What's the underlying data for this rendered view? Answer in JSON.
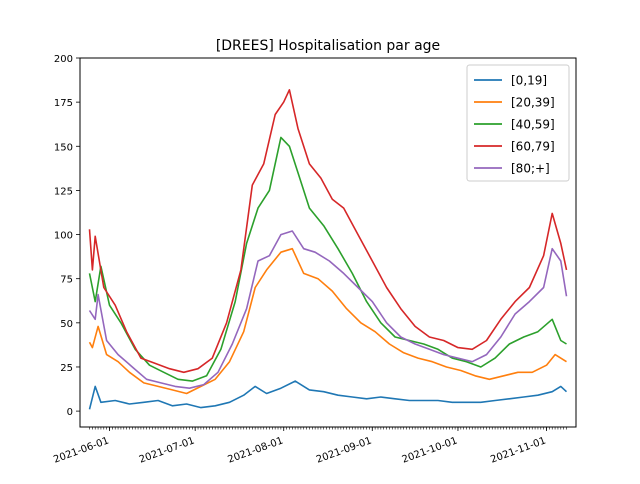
{
  "chart_data": {
    "type": "line",
    "title": "[DREES] Hospitalisation par age",
    "xlabel": "",
    "ylabel": "",
    "x_start": "2021-05-25",
    "x_end": "2021-11-08",
    "x_tick_labels": [
      "2021-06-01",
      "2021-07-01",
      "2021-08-01",
      "2021-09-01",
      "2021-10-01",
      "2021-11-01"
    ],
    "y_ticks": [
      0,
      25,
      50,
      75,
      100,
      125,
      150,
      175,
      200
    ],
    "ylim": [
      -9,
      200
    ],
    "grid": false,
    "legend_position": "top-right",
    "series": [
      {
        "name": "[0,19]",
        "color": "#1f77b4",
        "points": [
          [
            "2021-05-25",
            1
          ],
          [
            "2021-05-27",
            14
          ],
          [
            "2021-05-29",
            5
          ],
          [
            "2021-06-03",
            6
          ],
          [
            "2021-06-08",
            4
          ],
          [
            "2021-06-13",
            5
          ],
          [
            "2021-06-18",
            6
          ],
          [
            "2021-06-23",
            3
          ],
          [
            "2021-06-28",
            4
          ],
          [
            "2021-07-03",
            2
          ],
          [
            "2021-07-08",
            3
          ],
          [
            "2021-07-13",
            5
          ],
          [
            "2021-07-18",
            9
          ],
          [
            "2021-07-22",
            14
          ],
          [
            "2021-07-26",
            10
          ],
          [
            "2021-07-31",
            13
          ],
          [
            "2021-08-05",
            17
          ],
          [
            "2021-08-10",
            12
          ],
          [
            "2021-08-15",
            11
          ],
          [
            "2021-08-20",
            9
          ],
          [
            "2021-08-25",
            8
          ],
          [
            "2021-08-30",
            7
          ],
          [
            "2021-09-04",
            8
          ],
          [
            "2021-09-09",
            7
          ],
          [
            "2021-09-14",
            6
          ],
          [
            "2021-09-19",
            6
          ],
          [
            "2021-09-24",
            6
          ],
          [
            "2021-09-29",
            5
          ],
          [
            "2021-10-04",
            5
          ],
          [
            "2021-10-09",
            5
          ],
          [
            "2021-10-14",
            6
          ],
          [
            "2021-10-19",
            7
          ],
          [
            "2021-10-24",
            8
          ],
          [
            "2021-10-29",
            9
          ],
          [
            "2021-11-03",
            11
          ],
          [
            "2021-11-06",
            14
          ],
          [
            "2021-11-08",
            11
          ]
        ]
      },
      {
        "name": "[20,39]",
        "color": "#ff7f0e",
        "points": [
          [
            "2021-05-25",
            39
          ],
          [
            "2021-05-26",
            36
          ],
          [
            "2021-05-28",
            48
          ],
          [
            "2021-05-31",
            32
          ],
          [
            "2021-06-04",
            28
          ],
          [
            "2021-06-08",
            22
          ],
          [
            "2021-06-13",
            16
          ],
          [
            "2021-06-18",
            14
          ],
          [
            "2021-06-23",
            12
          ],
          [
            "2021-06-28",
            10
          ],
          [
            "2021-07-03",
            14
          ],
          [
            "2021-07-08",
            18
          ],
          [
            "2021-07-13",
            28
          ],
          [
            "2021-07-18",
            45
          ],
          [
            "2021-07-22",
            70
          ],
          [
            "2021-07-26",
            80
          ],
          [
            "2021-07-31",
            90
          ],
          [
            "2021-08-04",
            92
          ],
          [
            "2021-08-08",
            78
          ],
          [
            "2021-08-13",
            75
          ],
          [
            "2021-08-18",
            68
          ],
          [
            "2021-08-23",
            58
          ],
          [
            "2021-08-28",
            50
          ],
          [
            "2021-09-02",
            45
          ],
          [
            "2021-09-07",
            38
          ],
          [
            "2021-09-12",
            33
          ],
          [
            "2021-09-17",
            30
          ],
          [
            "2021-09-22",
            28
          ],
          [
            "2021-09-27",
            25
          ],
          [
            "2021-10-02",
            23
          ],
          [
            "2021-10-07",
            20
          ],
          [
            "2021-10-12",
            18
          ],
          [
            "2021-10-17",
            20
          ],
          [
            "2021-10-22",
            22
          ],
          [
            "2021-10-27",
            22
          ],
          [
            "2021-11-01",
            26
          ],
          [
            "2021-11-04",
            32
          ],
          [
            "2021-11-08",
            28
          ]
        ]
      },
      {
        "name": "[40,59]",
        "color": "#2ca02c",
        "points": [
          [
            "2021-05-25",
            78
          ],
          [
            "2021-05-27",
            62
          ],
          [
            "2021-05-29",
            82
          ],
          [
            "2021-06-01",
            60
          ],
          [
            "2021-06-05",
            50
          ],
          [
            "2021-06-10",
            35
          ],
          [
            "2021-06-15",
            26
          ],
          [
            "2021-06-20",
            22
          ],
          [
            "2021-06-25",
            18
          ],
          [
            "2021-06-30",
            17
          ],
          [
            "2021-07-05",
            20
          ],
          [
            "2021-07-10",
            35
          ],
          [
            "2021-07-15",
            62
          ],
          [
            "2021-07-19",
            95
          ],
          [
            "2021-07-23",
            115
          ],
          [
            "2021-07-27",
            125
          ],
          [
            "2021-07-31",
            155
          ],
          [
            "2021-08-03",
            150
          ],
          [
            "2021-08-06",
            135
          ],
          [
            "2021-08-10",
            115
          ],
          [
            "2021-08-15",
            105
          ],
          [
            "2021-08-20",
            92
          ],
          [
            "2021-08-25",
            78
          ],
          [
            "2021-08-30",
            62
          ],
          [
            "2021-09-04",
            50
          ],
          [
            "2021-09-09",
            42
          ],
          [
            "2021-09-14",
            40
          ],
          [
            "2021-09-19",
            38
          ],
          [
            "2021-09-24",
            35
          ],
          [
            "2021-09-29",
            30
          ],
          [
            "2021-10-04",
            28
          ],
          [
            "2021-10-09",
            25
          ],
          [
            "2021-10-14",
            30
          ],
          [
            "2021-10-19",
            38
          ],
          [
            "2021-10-24",
            42
          ],
          [
            "2021-10-29",
            45
          ],
          [
            "2021-11-03",
            52
          ],
          [
            "2021-11-06",
            40
          ],
          [
            "2021-11-08",
            38
          ]
        ]
      },
      {
        "name": "[60,79]",
        "color": "#d62728",
        "points": [
          [
            "2021-05-25",
            103
          ],
          [
            "2021-05-26",
            80
          ],
          [
            "2021-05-27",
            99
          ],
          [
            "2021-05-30",
            70
          ],
          [
            "2021-06-03",
            60
          ],
          [
            "2021-06-07",
            45
          ],
          [
            "2021-06-12",
            30
          ],
          [
            "2021-06-17",
            27
          ],
          [
            "2021-06-22",
            24
          ],
          [
            "2021-06-27",
            22
          ],
          [
            "2021-07-02",
            24
          ],
          [
            "2021-07-07",
            30
          ],
          [
            "2021-07-12",
            50
          ],
          [
            "2021-07-17",
            80
          ],
          [
            "2021-07-21",
            128
          ],
          [
            "2021-07-25",
            140
          ],
          [
            "2021-07-29",
            168
          ],
          [
            "2021-08-01",
            175
          ],
          [
            "2021-08-03",
            182
          ],
          [
            "2021-08-06",
            160
          ],
          [
            "2021-08-10",
            140
          ],
          [
            "2021-08-14",
            132
          ],
          [
            "2021-08-18",
            120
          ],
          [
            "2021-08-22",
            115
          ],
          [
            "2021-08-27",
            100
          ],
          [
            "2021-09-01",
            85
          ],
          [
            "2021-09-06",
            70
          ],
          [
            "2021-09-11",
            58
          ],
          [
            "2021-09-16",
            48
          ],
          [
            "2021-09-21",
            42
          ],
          [
            "2021-09-26",
            40
          ],
          [
            "2021-10-01",
            36
          ],
          [
            "2021-10-06",
            35
          ],
          [
            "2021-10-11",
            40
          ],
          [
            "2021-10-16",
            52
          ],
          [
            "2021-10-21",
            62
          ],
          [
            "2021-10-26",
            70
          ],
          [
            "2021-10-31",
            88
          ],
          [
            "2021-11-03",
            112
          ],
          [
            "2021-11-06",
            95
          ],
          [
            "2021-11-08",
            80
          ]
        ]
      },
      {
        "name": "[80;+]",
        "color": "#9467bd",
        "points": [
          [
            "2021-05-25",
            57
          ],
          [
            "2021-05-27",
            52
          ],
          [
            "2021-05-28",
            66
          ],
          [
            "2021-05-31",
            40
          ],
          [
            "2021-06-04",
            32
          ],
          [
            "2021-06-09",
            25
          ],
          [
            "2021-06-14",
            18
          ],
          [
            "2021-06-19",
            16
          ],
          [
            "2021-06-24",
            14
          ],
          [
            "2021-06-29",
            13
          ],
          [
            "2021-07-04",
            15
          ],
          [
            "2021-07-09",
            22
          ],
          [
            "2021-07-14",
            38
          ],
          [
            "2021-07-19",
            58
          ],
          [
            "2021-07-23",
            85
          ],
          [
            "2021-07-27",
            88
          ],
          [
            "2021-07-31",
            100
          ],
          [
            "2021-08-04",
            102
          ],
          [
            "2021-08-08",
            92
          ],
          [
            "2021-08-12",
            90
          ],
          [
            "2021-08-17",
            85
          ],
          [
            "2021-08-22",
            78
          ],
          [
            "2021-08-27",
            70
          ],
          [
            "2021-09-01",
            62
          ],
          [
            "2021-09-06",
            50
          ],
          [
            "2021-09-11",
            42
          ],
          [
            "2021-09-16",
            38
          ],
          [
            "2021-09-21",
            35
          ],
          [
            "2021-09-26",
            32
          ],
          [
            "2021-10-01",
            30
          ],
          [
            "2021-10-06",
            28
          ],
          [
            "2021-10-11",
            32
          ],
          [
            "2021-10-16",
            42
          ],
          [
            "2021-10-21",
            55
          ],
          [
            "2021-10-26",
            62
          ],
          [
            "2021-10-31",
            70
          ],
          [
            "2021-11-03",
            92
          ],
          [
            "2021-11-06",
            85
          ],
          [
            "2021-11-08",
            65
          ]
        ]
      }
    ]
  }
}
